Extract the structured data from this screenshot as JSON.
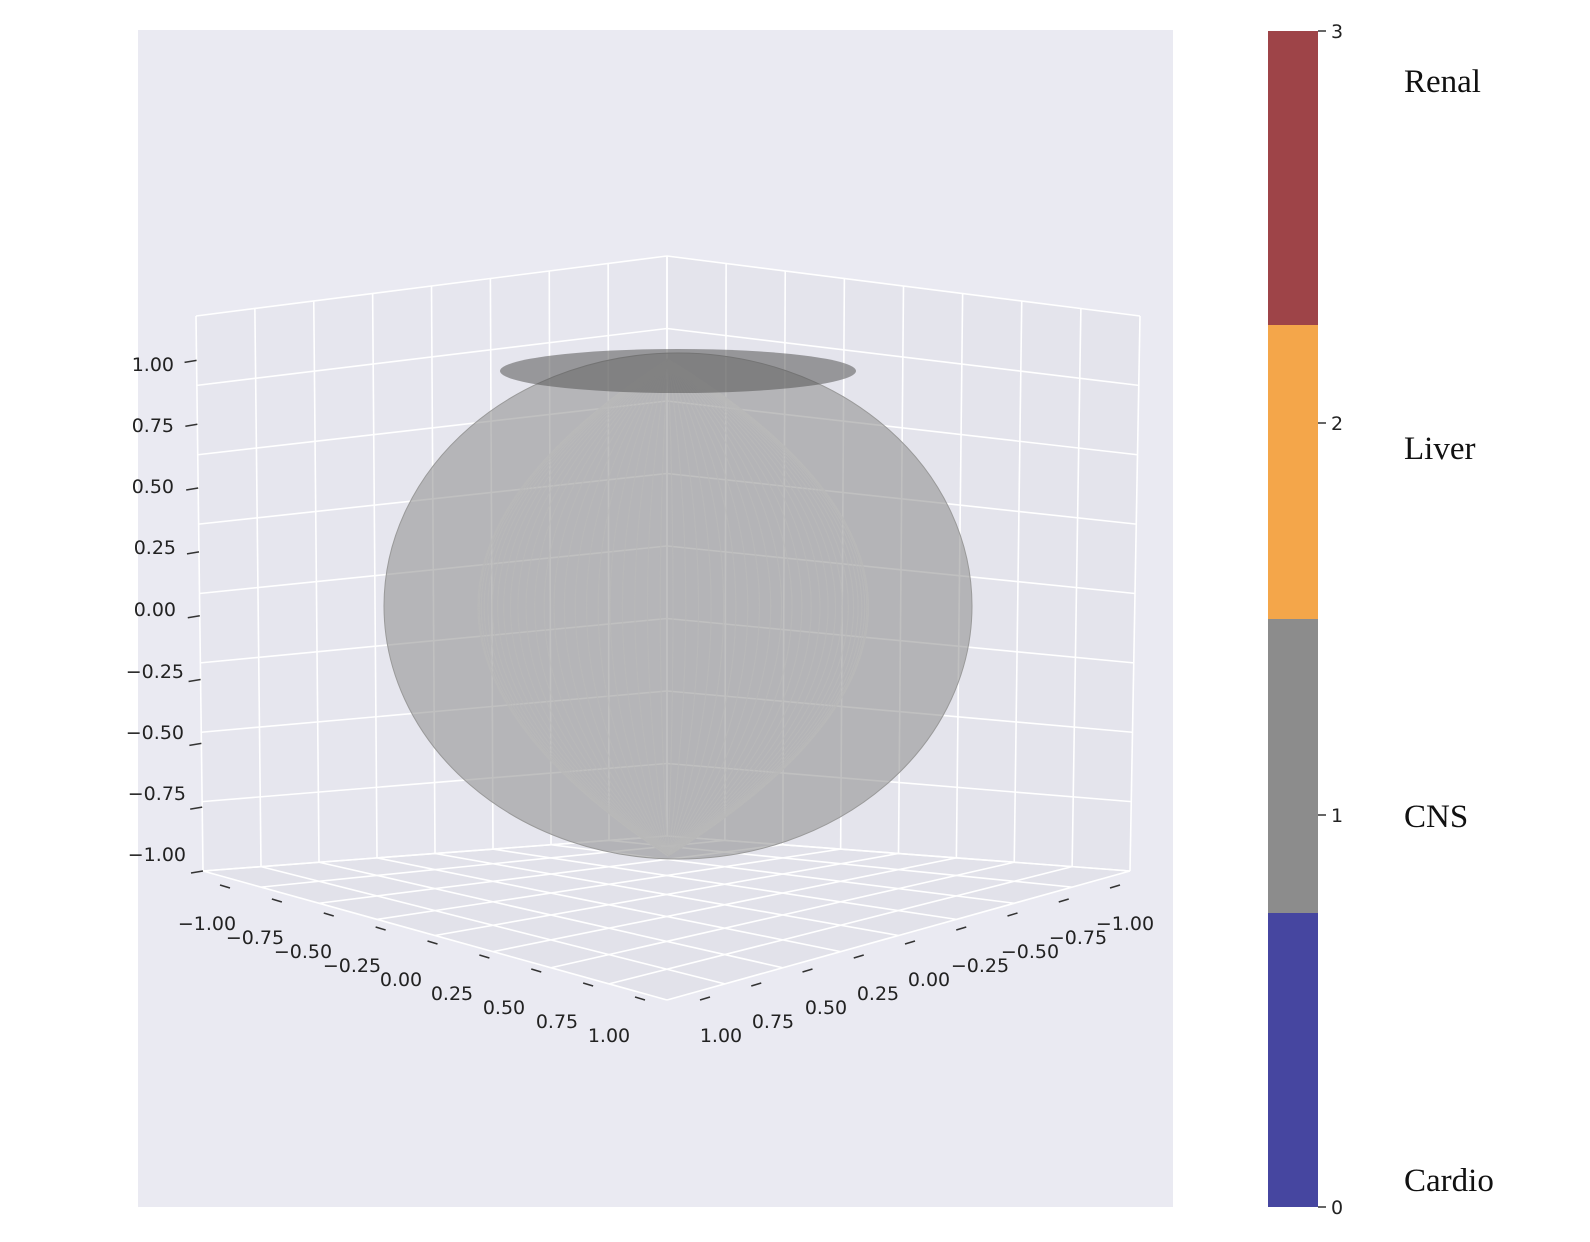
{
  "chart_data": {
    "type": "scatter",
    "projection": "3d",
    "title": "",
    "xlabel": "",
    "ylabel": "",
    "zlabel": "",
    "xlim": [
      -1.0,
      1.0
    ],
    "ylim": [
      -1.0,
      1.0
    ],
    "zlim": [
      -1.0,
      1.0
    ],
    "x_ticks": [
      "−1.00",
      "−0.75",
      "−0.50",
      "−0.25",
      "0.00",
      "0.25",
      "0.50",
      "0.75",
      "1.00"
    ],
    "y_ticks": [
      "−1.00",
      "−0.75",
      "−0.50",
      "−0.25",
      "0.00",
      "0.25",
      "0.50",
      "0.75",
      "1.00"
    ],
    "z_ticks": [
      "−1.00",
      "−0.75",
      "−0.50",
      "−0.25",
      "0.00",
      "0.25",
      "0.50",
      "0.75",
      "1.00"
    ],
    "grid": true,
    "background": "#EAEAF2",
    "surface": {
      "shape": "unit sphere",
      "color": "#8C8C8C"
    },
    "colorbar": {
      "ticks": [
        "0",
        "1",
        "2",
        "3"
      ],
      "range": [
        0,
        3
      ],
      "classes": [
        {
          "label": "Cardio",
          "color": "#4646A0"
        },
        {
          "label": "CNS",
          "color": "#8C8C8C"
        },
        {
          "label": "Liver",
          "color": "#F4A64A"
        },
        {
          "label": "Renal",
          "color": "#9E4448"
        }
      ]
    },
    "point_colors": {
      "Cardio": "#0D0D86",
      "CNS": "#4A4A4A",
      "Liver": "#FF9A00",
      "Renal": "#8B0A0A"
    }
  }
}
